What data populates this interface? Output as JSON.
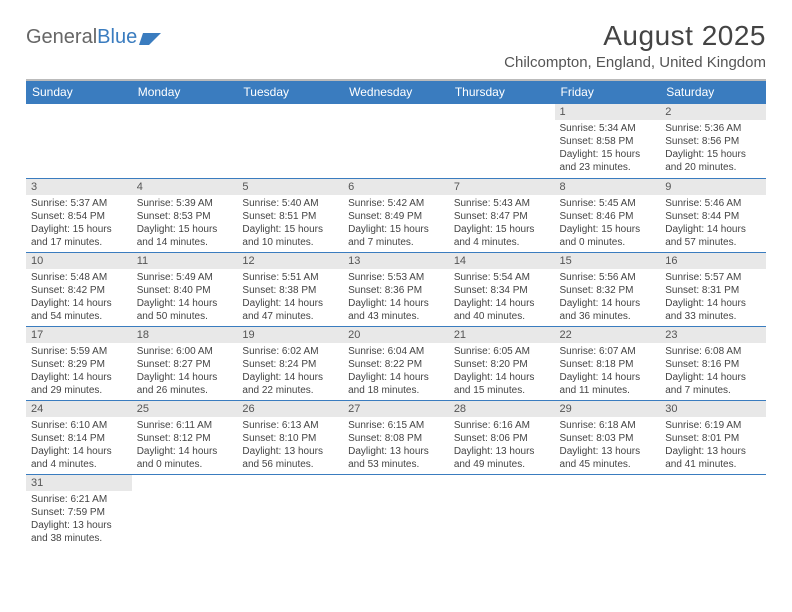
{
  "brand": {
    "part1": "General",
    "part2": "Blue"
  },
  "title": "August 2025",
  "location": "Chilcompton, England, United Kingdom",
  "colors": {
    "header_bg": "#3a7cbf",
    "header_text": "#ffffff",
    "daynum_bg": "#e8e8e8",
    "text": "#444444",
    "rule": "#3a7cbf"
  },
  "dayHeaders": [
    "Sunday",
    "Monday",
    "Tuesday",
    "Wednesday",
    "Thursday",
    "Friday",
    "Saturday"
  ],
  "weeks": [
    [
      {
        "n": "",
        "sr": "",
        "ss": "",
        "dl": ""
      },
      {
        "n": "",
        "sr": "",
        "ss": "",
        "dl": ""
      },
      {
        "n": "",
        "sr": "",
        "ss": "",
        "dl": ""
      },
      {
        "n": "",
        "sr": "",
        "ss": "",
        "dl": ""
      },
      {
        "n": "",
        "sr": "",
        "ss": "",
        "dl": ""
      },
      {
        "n": "1",
        "sr": "Sunrise: 5:34 AM",
        "ss": "Sunset: 8:58 PM",
        "dl": "Daylight: 15 hours and 23 minutes."
      },
      {
        "n": "2",
        "sr": "Sunrise: 5:36 AM",
        "ss": "Sunset: 8:56 PM",
        "dl": "Daylight: 15 hours and 20 minutes."
      }
    ],
    [
      {
        "n": "3",
        "sr": "Sunrise: 5:37 AM",
        "ss": "Sunset: 8:54 PM",
        "dl": "Daylight: 15 hours and 17 minutes."
      },
      {
        "n": "4",
        "sr": "Sunrise: 5:39 AM",
        "ss": "Sunset: 8:53 PM",
        "dl": "Daylight: 15 hours and 14 minutes."
      },
      {
        "n": "5",
        "sr": "Sunrise: 5:40 AM",
        "ss": "Sunset: 8:51 PM",
        "dl": "Daylight: 15 hours and 10 minutes."
      },
      {
        "n": "6",
        "sr": "Sunrise: 5:42 AM",
        "ss": "Sunset: 8:49 PM",
        "dl": "Daylight: 15 hours and 7 minutes."
      },
      {
        "n": "7",
        "sr": "Sunrise: 5:43 AM",
        "ss": "Sunset: 8:47 PM",
        "dl": "Daylight: 15 hours and 4 minutes."
      },
      {
        "n": "8",
        "sr": "Sunrise: 5:45 AM",
        "ss": "Sunset: 8:46 PM",
        "dl": "Daylight: 15 hours and 0 minutes."
      },
      {
        "n": "9",
        "sr": "Sunrise: 5:46 AM",
        "ss": "Sunset: 8:44 PM",
        "dl": "Daylight: 14 hours and 57 minutes."
      }
    ],
    [
      {
        "n": "10",
        "sr": "Sunrise: 5:48 AM",
        "ss": "Sunset: 8:42 PM",
        "dl": "Daylight: 14 hours and 54 minutes."
      },
      {
        "n": "11",
        "sr": "Sunrise: 5:49 AM",
        "ss": "Sunset: 8:40 PM",
        "dl": "Daylight: 14 hours and 50 minutes."
      },
      {
        "n": "12",
        "sr": "Sunrise: 5:51 AM",
        "ss": "Sunset: 8:38 PM",
        "dl": "Daylight: 14 hours and 47 minutes."
      },
      {
        "n": "13",
        "sr": "Sunrise: 5:53 AM",
        "ss": "Sunset: 8:36 PM",
        "dl": "Daylight: 14 hours and 43 minutes."
      },
      {
        "n": "14",
        "sr": "Sunrise: 5:54 AM",
        "ss": "Sunset: 8:34 PM",
        "dl": "Daylight: 14 hours and 40 minutes."
      },
      {
        "n": "15",
        "sr": "Sunrise: 5:56 AM",
        "ss": "Sunset: 8:32 PM",
        "dl": "Daylight: 14 hours and 36 minutes."
      },
      {
        "n": "16",
        "sr": "Sunrise: 5:57 AM",
        "ss": "Sunset: 8:31 PM",
        "dl": "Daylight: 14 hours and 33 minutes."
      }
    ],
    [
      {
        "n": "17",
        "sr": "Sunrise: 5:59 AM",
        "ss": "Sunset: 8:29 PM",
        "dl": "Daylight: 14 hours and 29 minutes."
      },
      {
        "n": "18",
        "sr": "Sunrise: 6:00 AM",
        "ss": "Sunset: 8:27 PM",
        "dl": "Daylight: 14 hours and 26 minutes."
      },
      {
        "n": "19",
        "sr": "Sunrise: 6:02 AM",
        "ss": "Sunset: 8:24 PM",
        "dl": "Daylight: 14 hours and 22 minutes."
      },
      {
        "n": "20",
        "sr": "Sunrise: 6:04 AM",
        "ss": "Sunset: 8:22 PM",
        "dl": "Daylight: 14 hours and 18 minutes."
      },
      {
        "n": "21",
        "sr": "Sunrise: 6:05 AM",
        "ss": "Sunset: 8:20 PM",
        "dl": "Daylight: 14 hours and 15 minutes."
      },
      {
        "n": "22",
        "sr": "Sunrise: 6:07 AM",
        "ss": "Sunset: 8:18 PM",
        "dl": "Daylight: 14 hours and 11 minutes."
      },
      {
        "n": "23",
        "sr": "Sunrise: 6:08 AM",
        "ss": "Sunset: 8:16 PM",
        "dl": "Daylight: 14 hours and 7 minutes."
      }
    ],
    [
      {
        "n": "24",
        "sr": "Sunrise: 6:10 AM",
        "ss": "Sunset: 8:14 PM",
        "dl": "Daylight: 14 hours and 4 minutes."
      },
      {
        "n": "25",
        "sr": "Sunrise: 6:11 AM",
        "ss": "Sunset: 8:12 PM",
        "dl": "Daylight: 14 hours and 0 minutes."
      },
      {
        "n": "26",
        "sr": "Sunrise: 6:13 AM",
        "ss": "Sunset: 8:10 PM",
        "dl": "Daylight: 13 hours and 56 minutes."
      },
      {
        "n": "27",
        "sr": "Sunrise: 6:15 AM",
        "ss": "Sunset: 8:08 PM",
        "dl": "Daylight: 13 hours and 53 minutes."
      },
      {
        "n": "28",
        "sr": "Sunrise: 6:16 AM",
        "ss": "Sunset: 8:06 PM",
        "dl": "Daylight: 13 hours and 49 minutes."
      },
      {
        "n": "29",
        "sr": "Sunrise: 6:18 AM",
        "ss": "Sunset: 8:03 PM",
        "dl": "Daylight: 13 hours and 45 minutes."
      },
      {
        "n": "30",
        "sr": "Sunrise: 6:19 AM",
        "ss": "Sunset: 8:01 PM",
        "dl": "Daylight: 13 hours and 41 minutes."
      }
    ],
    [
      {
        "n": "31",
        "sr": "Sunrise: 6:21 AM",
        "ss": "Sunset: 7:59 PM",
        "dl": "Daylight: 13 hours and 38 minutes."
      },
      {
        "n": "",
        "sr": "",
        "ss": "",
        "dl": ""
      },
      {
        "n": "",
        "sr": "",
        "ss": "",
        "dl": ""
      },
      {
        "n": "",
        "sr": "",
        "ss": "",
        "dl": ""
      },
      {
        "n": "",
        "sr": "",
        "ss": "",
        "dl": ""
      },
      {
        "n": "",
        "sr": "",
        "ss": "",
        "dl": ""
      },
      {
        "n": "",
        "sr": "",
        "ss": "",
        "dl": ""
      }
    ]
  ]
}
